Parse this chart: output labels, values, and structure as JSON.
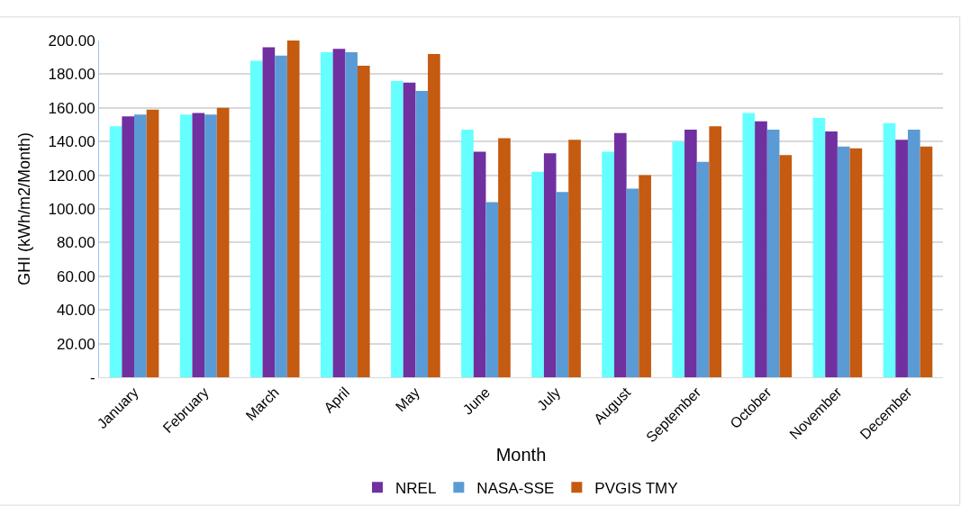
{
  "chart_data": {
    "type": "bar",
    "xlabel": "Month",
    "ylabel": "GHI (kWh/m2/Month)",
    "categories": [
      "January",
      "February",
      "March",
      "April",
      "May",
      "June",
      "July",
      "August",
      "September",
      "October",
      "November",
      "December"
    ],
    "series": [
      {
        "color": "#66ffff",
        "values": [
          149,
          156,
          188,
          193,
          176,
          147,
          122,
          134,
          140,
          157,
          154,
          151
        ]
      },
      {
        "name": "NREL",
        "color": "#7030a0",
        "values": [
          155,
          157,
          196,
          195,
          175,
          134,
          133,
          145,
          147,
          152,
          146,
          141
        ]
      },
      {
        "name": "NASA-SSE",
        "color": "#5b9bd5",
        "values": [
          156,
          156,
          191,
          193,
          170,
          104,
          110,
          112,
          128,
          147,
          137,
          147
        ]
      },
      {
        "name": "PVGIS TMY",
        "color": "#c55a11",
        "values": [
          159,
          160,
          200,
          185,
          192,
          142,
          141,
          120,
          149,
          132,
          136,
          137
        ]
      }
    ],
    "ylim": [
      0,
      200
    ],
    "yticks": [
      {
        "value": 0,
        "label": "-"
      },
      {
        "value": 20,
        "label": "20.00"
      },
      {
        "value": 40,
        "label": "40.00"
      },
      {
        "value": 60,
        "label": "60.00"
      },
      {
        "value": 80,
        "label": "80.00"
      },
      {
        "value": 100,
        "label": "100.00"
      },
      {
        "value": 120,
        "label": "120.00"
      },
      {
        "value": 140,
        "label": "140.00"
      },
      {
        "value": 160,
        "label": "160.00"
      },
      {
        "value": 180,
        "label": "180.00"
      },
      {
        "value": 200,
        "label": "200.00"
      }
    ],
    "grid": "y",
    "legend": "bottom"
  }
}
